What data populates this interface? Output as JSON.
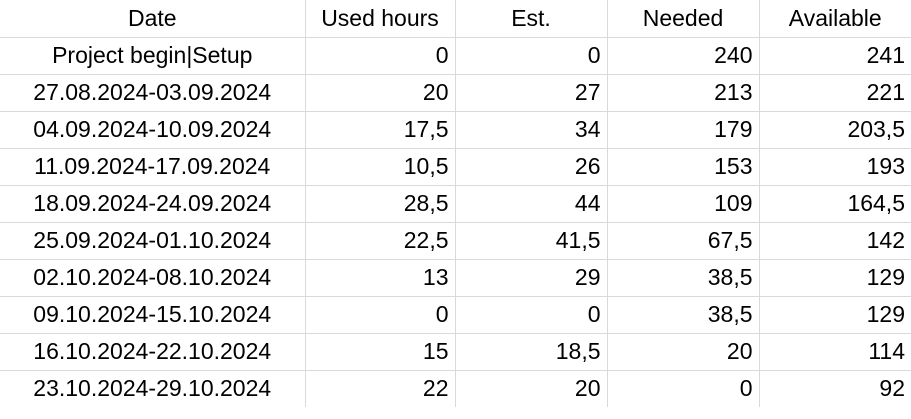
{
  "sheet": {
    "headers": [
      "Date",
      "Used hours",
      "Est.",
      "Needed",
      "Available"
    ],
    "rows": [
      {
        "date": "Project begin|Setup",
        "used": "0",
        "est": "0",
        "needed": "240",
        "available": "241"
      },
      {
        "date": "27.08.2024-03.09.2024",
        "used": "20",
        "est": "27",
        "needed": "213",
        "available": "221"
      },
      {
        "date": "04.09.2024-10.09.2024",
        "used": "17,5",
        "est": "34",
        "needed": "179",
        "available": "203,5"
      },
      {
        "date": "11.09.2024-17.09.2024",
        "used": "10,5",
        "est": "26",
        "needed": "153",
        "available": "193"
      },
      {
        "date": "18.09.2024-24.09.2024",
        "used": "28,5",
        "est": "44",
        "needed": "109",
        "available": "164,5"
      },
      {
        "date": "25.09.2024-01.10.2024",
        "used": "22,5",
        "est": "41,5",
        "needed": "67,5",
        "available": "142"
      },
      {
        "date": "02.10.2024-08.10.2024",
        "used": "13",
        "est": "29",
        "needed": "38,5",
        "available": "129"
      },
      {
        "date": "09.10.2024-15.10.2024",
        "used": "0",
        "est": "0",
        "needed": "38,5",
        "available": "129"
      },
      {
        "date": "16.10.2024-22.10.2024",
        "used": "15",
        "est": "18,5",
        "needed": "20",
        "available": "114"
      },
      {
        "date": "23.10.2024-29.10.2024",
        "used": "22",
        "est": "20",
        "needed": "0",
        "available": "92"
      }
    ]
  }
}
